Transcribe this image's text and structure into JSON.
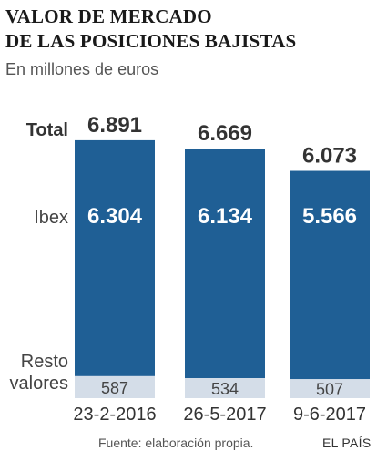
{
  "header": {
    "title_line1": "VALOR DE MERCADO",
    "title_line2": "DE LAS POSICIONES BAJISTAS",
    "subtitle": "En millones de euros"
  },
  "footer": {
    "source": "Fuente: elaboración propia.",
    "brand": "EL PAÍS"
  },
  "colors": {
    "ibex": "#1f5f95",
    "resto": "#d4dde8",
    "text_dark": "#333333"
  },
  "chart_data": {
    "type": "bar",
    "stacked": true,
    "categories": [
      "23-2-2016",
      "26-5-2017",
      "9-6-2017"
    ],
    "totals_label": "Total",
    "totals": [
      6891,
      6669,
      6073
    ],
    "totals_text": [
      "6.891",
      "6.669",
      "6.073"
    ],
    "series": [
      {
        "name": "Ibex",
        "values": [
          6304,
          6134,
          5566
        ],
        "labels": [
          "6.304",
          "6.134",
          "5.566"
        ]
      },
      {
        "name": "Resto valores",
        "label_lines": [
          "Resto",
          "valores"
        ],
        "values": [
          587,
          534,
          507
        ],
        "labels": [
          "587",
          "534",
          "507"
        ]
      }
    ]
  }
}
